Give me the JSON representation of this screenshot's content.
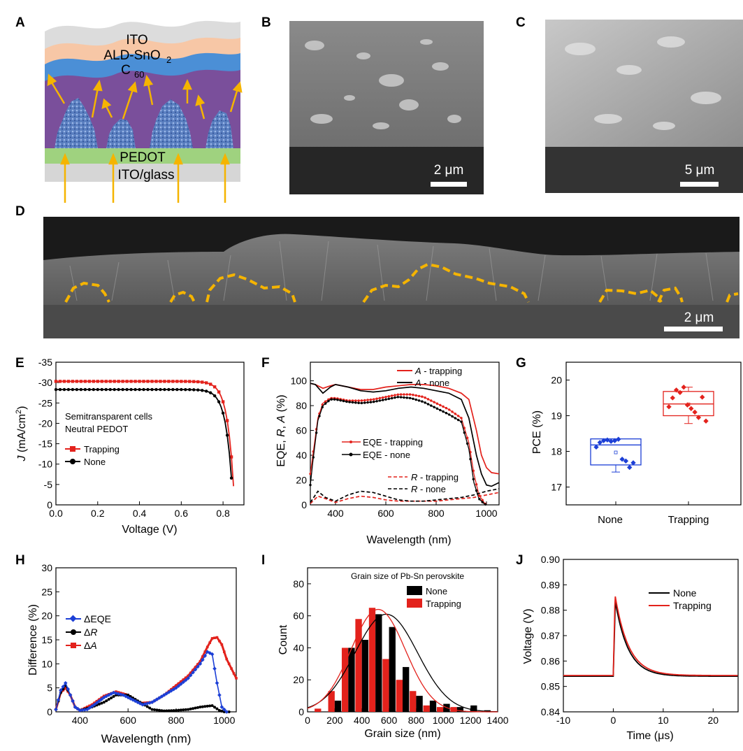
{
  "panels": {
    "A": {
      "letter": "A",
      "layers": {
        "ito": "ITO",
        "ald": "ALD-SnO",
        "ald_sub": "2",
        "c60": "C",
        "c60_sub": "60",
        "pedot": "PEDOT",
        "glass": "ITO/glass"
      }
    },
    "B": {
      "letter": "B",
      "scale_label": "2 μm"
    },
    "C": {
      "letter": "C",
      "scale_label": "5 μm"
    },
    "D": {
      "letter": "D",
      "scale_label": "2 μm"
    },
    "E": {
      "letter": "E"
    },
    "F": {
      "letter": "F"
    },
    "G": {
      "letter": "G"
    },
    "H": {
      "letter": "H"
    },
    "I": {
      "letter": "I"
    },
    "J": {
      "letter": "J"
    }
  },
  "colors": {
    "red": "#e3221c",
    "black": "#000000",
    "blue": "#1c3fd6",
    "orange": "#f5b400",
    "sem_dark": "#2d2d2d"
  },
  "chart_data": [
    {
      "panel": "E",
      "type": "line",
      "xlabel": "Voltage (V)",
      "ylabel_italic": "J",
      "ylabel_rest": " (mA/cm",
      "ylabel_sup": "2",
      "ylabel_end": ")",
      "xlim": [
        0.0,
        0.9
      ],
      "ylim": [
        0,
        -35
      ],
      "xticks": [
        "0.0",
        "0.2",
        "0.4",
        "0.6",
        "0.8"
      ],
      "xtick_values": [
        0,
        0.2,
        0.4,
        0.6,
        0.8
      ],
      "yticks": [
        "0",
        "-5",
        "-10",
        "-15",
        "-20",
        "-25",
        "-30",
        "-35"
      ],
      "ytick_values": [
        0,
        -5,
        -10,
        -15,
        -20,
        -25,
        -30,
        -35
      ],
      "annotation": [
        "Semitransparent cells",
        "Neutral PEDOT"
      ],
      "legend": [
        "Trapping",
        "None"
      ],
      "series": [
        {
          "name": "Trapping",
          "color": "#e3221c",
          "marker": "square",
          "jsc": -30.3,
          "voc": 0.855,
          "knee_v": 0.69
        },
        {
          "name": "None",
          "color": "#000000",
          "marker": "circle",
          "jsc": -28.3,
          "voc": 0.848,
          "knee_v": 0.67
        }
      ]
    },
    {
      "panel": "F",
      "type": "line",
      "xlabel": "Wavelength (nm)",
      "ylabel": [
        "EQE, ",
        "R",
        ", ",
        "A",
        " (%)"
      ],
      "xlim": [
        300,
        1050
      ],
      "ylim": [
        0,
        115
      ],
      "xticks": [
        "400",
        "600",
        "800",
        "1000"
      ],
      "xtick_values": [
        400,
        600,
        800,
        1000
      ],
      "yticks": [
        "0",
        "20",
        "40",
        "60",
        "80",
        "100"
      ],
      "ytick_values": [
        0,
        20,
        40,
        60,
        80,
        100
      ],
      "legend_top": [
        [
          "A",
          " - trapping"
        ],
        [
          "A",
          " - none"
        ]
      ],
      "legend_mid": [
        "EQE - trapping",
        "EQE - none"
      ],
      "legend_bot": [
        [
          "R",
          " - trapping"
        ],
        [
          "R",
          " - none"
        ]
      ],
      "series": [
        {
          "name": "A - trapping",
          "color": "#e3221c",
          "style": "solid",
          "x": [
            300,
            320,
            350,
            380,
            400,
            450,
            500,
            550,
            600,
            650,
            700,
            750,
            800,
            850,
            900,
            930,
            960,
            980,
            1000,
            1020,
            1050
          ],
          "y": [
            98,
            97,
            94,
            96,
            97,
            95,
            93,
            93,
            95,
            96,
            97,
            97,
            96,
            94,
            90,
            85,
            60,
            40,
            30,
            26,
            25
          ]
        },
        {
          "name": "A - none",
          "color": "#000000",
          "style": "solid",
          "x": [
            300,
            320,
            350,
            380,
            400,
            450,
            500,
            550,
            600,
            650,
            700,
            750,
            800,
            850,
            900,
            930,
            960,
            980,
            1000,
            1020,
            1050
          ],
          "y": [
            98,
            97,
            90,
            95,
            97,
            95,
            92,
            91,
            92,
            94,
            95,
            94,
            92,
            90,
            85,
            70,
            40,
            25,
            16,
            15,
            18
          ]
        },
        {
          "name": "EQE - trapping",
          "color": "#e3221c",
          "style": "markers",
          "x": [
            300,
            310,
            330,
            350,
            380,
            400,
            450,
            500,
            550,
            600,
            650,
            700,
            750,
            800,
            850,
            900,
            930,
            950,
            970,
            990,
            1000
          ],
          "y": [
            25,
            40,
            70,
            82,
            86,
            86,
            84,
            84,
            85,
            87,
            89,
            89,
            87,
            82,
            77,
            70,
            50,
            25,
            8,
            2,
            0
          ]
        },
        {
          "name": "EQE - none",
          "color": "#000000",
          "style": "markers",
          "x": [
            300,
            310,
            330,
            350,
            380,
            400,
            450,
            500,
            550,
            600,
            650,
            700,
            750,
            800,
            850,
            900,
            930,
            950,
            970,
            990,
            1000
          ],
          "y": [
            16,
            35,
            68,
            80,
            85,
            85,
            83,
            82,
            83,
            85,
            87,
            86,
            83,
            78,
            73,
            67,
            45,
            18,
            5,
            1,
            0
          ]
        },
        {
          "name": "R - trapping",
          "color": "#e3221c",
          "style": "dashed",
          "x": [
            300,
            330,
            360,
            400,
            450,
            500,
            550,
            600,
            650,
            700,
            750,
            800,
            850,
            900,
            950,
            1000,
            1050
          ],
          "y": [
            1,
            7,
            5,
            2,
            5,
            7,
            6,
            4,
            3,
            3,
            3,
            3,
            4,
            5,
            6,
            8,
            10
          ]
        },
        {
          "name": "R - none",
          "color": "#000000",
          "style": "dashed",
          "x": [
            300,
            330,
            360,
            400,
            450,
            500,
            550,
            600,
            650,
            700,
            750,
            800,
            850,
            900,
            950,
            1000,
            1050
          ],
          "y": [
            2,
            11,
            6,
            3,
            8,
            11,
            10,
            7,
            4,
            3,
            3,
            4,
            5,
            6,
            8,
            11,
            13
          ]
        }
      ]
    },
    {
      "panel": "G",
      "type": "box",
      "ylabel": "PCE (%)",
      "ylim": [
        16.5,
        20.5
      ],
      "yticks": [
        "17",
        "18",
        "19",
        "20"
      ],
      "ytick_values": [
        17,
        18,
        19,
        20
      ],
      "categories": [
        "None",
        "Trapping"
      ],
      "series": [
        {
          "name": "None",
          "color": "#1c3fd6",
          "q1": 17.62,
          "median": 18.18,
          "q3": 18.35,
          "whisker_low": 17.42,
          "whisker_high": 18.35,
          "mean": 17.97,
          "points": [
            18.12,
            18.25,
            18.3,
            18.32,
            18.28,
            18.3,
            18.34,
            17.78,
            17.73,
            17.55,
            17.68
          ]
        },
        {
          "name": "Trapping",
          "color": "#e3221c",
          "q1": 19.0,
          "median": 19.33,
          "q3": 19.68,
          "whisker_low": 18.78,
          "whisker_high": 19.8,
          "mean": 19.32,
          "points": [
            19.25,
            19.5,
            19.72,
            19.65,
            19.8,
            19.3,
            19.2,
            19.1,
            18.95,
            19.52,
            18.85
          ]
        }
      ]
    },
    {
      "panel": "H",
      "type": "line",
      "xlabel": "Wavelength (nm)",
      "ylabel": "Difference (%)",
      "xlim": [
        300,
        1050
      ],
      "ylim": [
        0,
        30
      ],
      "xticks": [
        "400",
        "600",
        "800",
        "1000"
      ],
      "xtick_values": [
        400,
        600,
        800,
        1000
      ],
      "yticks": [
        "0",
        "5",
        "10",
        "15",
        "20",
        "25",
        "30"
      ],
      "ytick_values": [
        0,
        5,
        10,
        15,
        20,
        25,
        30
      ],
      "legend": [
        [
          "ΔEQE",
          ""
        ],
        [
          "Δ",
          "R"
        ],
        [
          "Δ",
          "A"
        ]
      ],
      "series": [
        {
          "name": "ΔEQE",
          "color": "#1c3fd6",
          "marker": "diamond",
          "x": [
            300,
            320,
            340,
            360,
            380,
            400,
            430,
            460,
            500,
            540,
            580,
            620,
            660,
            700,
            750,
            800,
            850,
            900,
            930,
            950,
            970,
            990,
            1010
          ],
          "y": [
            0.5,
            4.5,
            6,
            3.5,
            1,
            0.3,
            0.5,
            1.5,
            3,
            4,
            3.5,
            2.5,
            1.5,
            2,
            3.5,
            5,
            7,
            10,
            12.5,
            12,
            6,
            1,
            0
          ]
        },
        {
          "name": "ΔR",
          "color": "#000000",
          "marker": "circle",
          "x": [
            300,
            320,
            340,
            360,
            380,
            400,
            450,
            500,
            550,
            600,
            650,
            700,
            750,
            800,
            850,
            900,
            950,
            980,
            1000,
            1020
          ],
          "y": [
            0.5,
            4,
            5.5,
            3.5,
            1,
            0.3,
            1,
            2,
            3.5,
            3.5,
            2,
            0.5,
            0.2,
            0.3,
            0.5,
            1,
            1.3,
            0.3,
            0,
            0
          ]
        },
        {
          "name": "ΔA",
          "color": "#e3221c",
          "marker": "square",
          "x": [
            300,
            320,
            340,
            360,
            380,
            400,
            450,
            500,
            550,
            600,
            650,
            700,
            750,
            800,
            850,
            900,
            930,
            950,
            970,
            990,
            1010,
            1030,
            1050
          ],
          "y": [
            0.5,
            4,
            5,
            3.5,
            1,
            0.3,
            1.5,
            3.3,
            4.2,
            3.5,
            1.8,
            2,
            3.5,
            5.5,
            7.5,
            10.5,
            13.5,
            15.3,
            15.5,
            14,
            11,
            9,
            7
          ]
        }
      ]
    },
    {
      "panel": "I",
      "type": "bar",
      "title": "Grain size of Pb-Sn perovskite",
      "xlabel": "Grain size (nm)",
      "ylabel": "Count",
      "xlim": [
        0,
        1400
      ],
      "ylim": [
        0,
        90
      ],
      "xticks": [
        "0",
        "200",
        "400",
        "600",
        "800",
        "1000",
        "1200",
        "1400"
      ],
      "xtick_values": [
        0,
        200,
        400,
        600,
        800,
        1000,
        1200,
        1400
      ],
      "yticks": [
        "0",
        "20",
        "40",
        "60",
        "80"
      ],
      "ytick_values": [
        0,
        20,
        40,
        60,
        80
      ],
      "legend": [
        "None",
        "Trapping"
      ],
      "bin_centers": [
        100,
        200,
        300,
        400,
        500,
        600,
        700,
        800,
        900,
        1000,
        1100,
        1200,
        1300
      ],
      "series": [
        {
          "name": "None",
          "color": "#000000",
          "values": [
            0,
            7,
            40,
            45,
            61,
            53,
            28,
            10,
            7,
            5,
            3,
            4,
            1
          ]
        },
        {
          "name": "Trapping",
          "color": "#e3221c",
          "values": [
            2,
            13,
            40,
            58,
            65,
            33,
            20,
            13,
            4,
            3,
            3,
            0,
            0
          ]
        }
      ],
      "fits": [
        {
          "name": "None",
          "color": "#000000",
          "mu": 580,
          "sigma": 230,
          "peak": 61
        },
        {
          "name": "Trapping",
          "color": "#e3221c",
          "mu": 520,
          "sigma": 200,
          "peak": 64
        }
      ]
    },
    {
      "panel": "J",
      "type": "line",
      "xlabel": "Time (μs)",
      "ylabel": "Voltage (V)",
      "xlim": [
        -10,
        25
      ],
      "ylim": [
        0.84,
        0.9
      ],
      "xticks": [
        "-10",
        "0",
        "10",
        "20"
      ],
      "xtick_values": [
        -10,
        0,
        10,
        20
      ],
      "yticks": [
        "0.84",
        "0.85",
        "0.86",
        "0.87",
        "0.88",
        "0.89",
        "0.90"
      ],
      "ytick_values": [
        0.84,
        0.85,
        0.86,
        0.87,
        0.88,
        0.89,
        0.9
      ],
      "legend": [
        "None",
        "Trapping"
      ],
      "series": [
        {
          "name": "None",
          "color": "#000000",
          "baseline": 0.854,
          "peak": 0.8835,
          "peak_t": 0.4,
          "tau": 2.6
        },
        {
          "name": "Trapping",
          "color": "#e3221c",
          "baseline": 0.8543,
          "peak": 0.886,
          "peak_t": 0.35,
          "tau": 2.7
        }
      ]
    }
  ]
}
